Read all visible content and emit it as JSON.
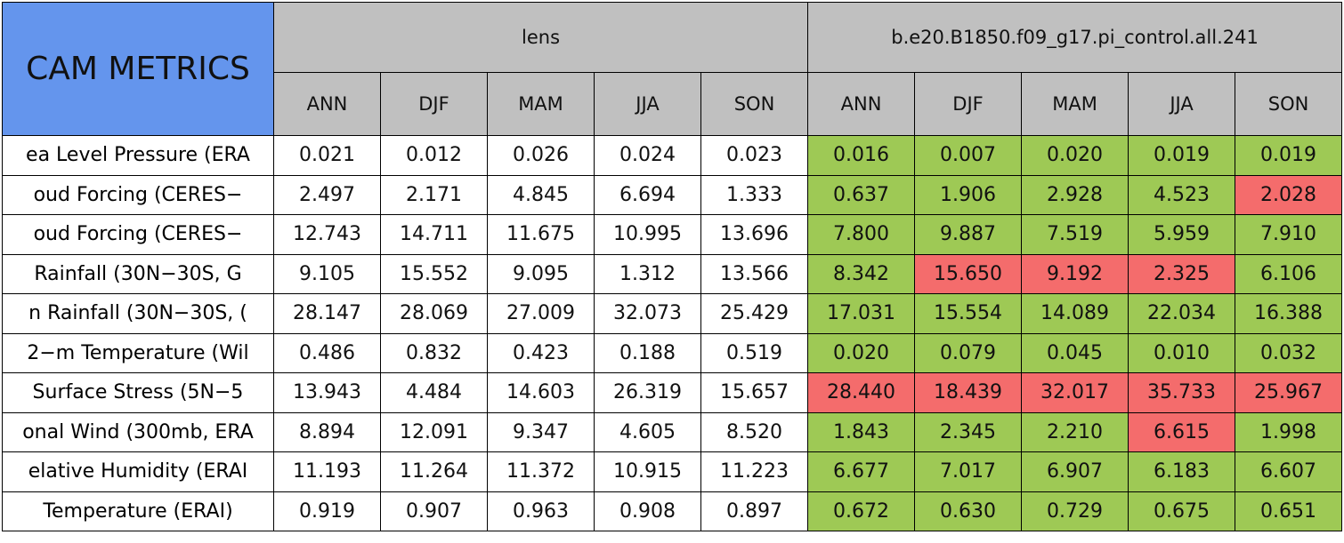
{
  "header": {
    "title": "CAM METRICS",
    "groups": [
      {
        "name": "lens",
        "seasons": [
          "ANN",
          "DJF",
          "MAM",
          "JJA",
          "SON"
        ]
      },
      {
        "name": "b.e20.B1850.f09_g17.pi_control.all.241",
        "seasons": [
          "ANN",
          "DJF",
          "MAM",
          "JJA",
          "SON"
        ]
      }
    ],
    "title_color": "#6495ed",
    "header_color": "#c0c0c0"
  },
  "table": {
    "rows": [
      {
        "label": "ea Level Pressure (ERA",
        "values": [
          "0.021",
          "0.012",
          "0.026",
          "0.024",
          "0.023",
          "0.016",
          "0.007",
          "0.020",
          "0.019",
          "0.019"
        ],
        "colors": [
          "#ffffff",
          "#ffffff",
          "#ffffff",
          "#ffffff",
          "#ffffff",
          "#9ec955",
          "#9ec955",
          "#9ec955",
          "#9ec955",
          "#9ec955"
        ]
      },
      {
        "label": "oud Forcing (CERES−",
        "values": [
          "2.497",
          "2.171",
          "4.845",
          "6.694",
          "1.333",
          "0.637",
          "1.906",
          "2.928",
          "4.523",
          "2.028"
        ],
        "colors": [
          "#ffffff",
          "#ffffff",
          "#ffffff",
          "#ffffff",
          "#ffffff",
          "#9ec955",
          "#9ec955",
          "#9ec955",
          "#9ec955",
          "#f46c6c"
        ]
      },
      {
        "label": "oud Forcing (CERES−",
        "values": [
          "12.743",
          "14.711",
          "11.675",
          "10.995",
          "13.696",
          "7.800",
          "9.887",
          "7.519",
          "5.959",
          "7.910"
        ],
        "colors": [
          "#ffffff",
          "#ffffff",
          "#ffffff",
          "#ffffff",
          "#ffffff",
          "#9ec955",
          "#9ec955",
          "#9ec955",
          "#9ec955",
          "#9ec955"
        ]
      },
      {
        "label": "Rainfall (30N−30S, G",
        "values": [
          "9.105",
          "15.552",
          "9.095",
          "1.312",
          "13.566",
          "8.342",
          "15.650",
          "9.192",
          "2.325",
          "6.106"
        ],
        "colors": [
          "#ffffff",
          "#ffffff",
          "#ffffff",
          "#ffffff",
          "#ffffff",
          "#9ec955",
          "#f46c6c",
          "#f46c6c",
          "#f46c6c",
          "#9ec955"
        ]
      },
      {
        "label": "n Rainfall (30N−30S, (",
        "values": [
          "28.147",
          "28.069",
          "27.009",
          "32.073",
          "25.429",
          "17.031",
          "15.554",
          "14.089",
          "22.034",
          "16.388"
        ],
        "colors": [
          "#ffffff",
          "#ffffff",
          "#ffffff",
          "#ffffff",
          "#ffffff",
          "#9ec955",
          "#9ec955",
          "#9ec955",
          "#9ec955",
          "#9ec955"
        ]
      },
      {
        "label": "2−m Temperature (Wil",
        "values": [
          "0.486",
          "0.832",
          "0.423",
          "0.188",
          "0.519",
          "0.020",
          "0.079",
          "0.045",
          "0.010",
          "0.032"
        ],
        "colors": [
          "#ffffff",
          "#ffffff",
          "#ffffff",
          "#ffffff",
          "#ffffff",
          "#9ec955",
          "#9ec955",
          "#9ec955",
          "#9ec955",
          "#9ec955"
        ]
      },
      {
        "label": "Surface Stress (5N−5",
        "values": [
          "13.943",
          "4.484",
          "14.603",
          "26.319",
          "15.657",
          "28.440",
          "18.439",
          "32.017",
          "35.733",
          "25.967"
        ],
        "colors": [
          "#ffffff",
          "#ffffff",
          "#ffffff",
          "#ffffff",
          "#ffffff",
          "#f46c6c",
          "#f46c6c",
          "#f46c6c",
          "#f46c6c",
          "#f46c6c"
        ]
      },
      {
        "label": "onal Wind (300mb, ERA",
        "values": [
          "8.894",
          "12.091",
          "9.347",
          "4.605",
          "8.520",
          "1.843",
          "2.345",
          "2.210",
          "6.615",
          "1.998"
        ],
        "colors": [
          "#ffffff",
          "#ffffff",
          "#ffffff",
          "#ffffff",
          "#ffffff",
          "#9ec955",
          "#9ec955",
          "#9ec955",
          "#f46c6c",
          "#9ec955"
        ]
      },
      {
        "label": "elative Humidity (ERAI",
        "values": [
          "11.193",
          "11.264",
          "11.372",
          "10.915",
          "11.223",
          "6.677",
          "7.017",
          "6.907",
          "6.183",
          "6.607"
        ],
        "colors": [
          "#ffffff",
          "#ffffff",
          "#ffffff",
          "#ffffff",
          "#ffffff",
          "#9ec955",
          "#9ec955",
          "#9ec955",
          "#9ec955",
          "#9ec955"
        ]
      },
      {
        "label": "Temperature (ERAI)",
        "values": [
          "0.919",
          "0.907",
          "0.963",
          "0.908",
          "0.897",
          "0.672",
          "0.630",
          "0.729",
          "0.675",
          "0.651"
        ],
        "colors": [
          "#ffffff",
          "#ffffff",
          "#ffffff",
          "#ffffff",
          "#ffffff",
          "#9ec955",
          "#9ec955",
          "#9ec955",
          "#9ec955",
          "#9ec955"
        ]
      }
    ]
  }
}
